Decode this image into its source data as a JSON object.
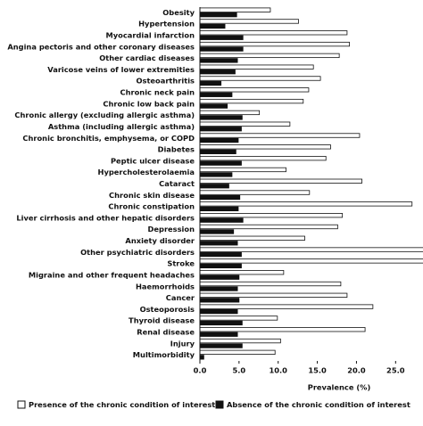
{
  "chart_data": {
    "type": "bar",
    "orientation": "horizontal",
    "categories": [
      "Obesity",
      "Hypertension",
      "Myocardial infarction",
      "Angina pectoris and other coronary diseases",
      "Other cardiac diseases",
      "Varicose veins of lower extremities",
      "Osteoarthritis",
      "Chronic neck pain",
      "Chronic low back pain",
      "Chronic allergy (excluding allergic asthma)",
      "Asthma (including allergic asthma)",
      "Chronic bronchitis, emphysema, or COPD",
      "Diabetes",
      "Peptic ulcer disease",
      "Hypercholesterolaemia",
      "Cataract",
      "Chronic skin disease",
      "Chronic constipation",
      "Liver cirrhosis and other hepatic disorders",
      "Depression",
      "Anxiety disorder",
      "Other psychiatric disorders",
      "Stroke",
      "Migraine and other frequent headaches",
      "Haemorrhoids",
      "Cancer",
      "Osteoporosis",
      "Thyroid disease",
      "Renal disease",
      "Injury",
      "Multimorbidity"
    ],
    "series": [
      {
        "name": "Presence of the chronic condition of interest",
        "color": "#ffffff",
        "values": [
          9.0,
          12.6,
          18.8,
          19.1,
          17.8,
          14.5,
          15.4,
          13.9,
          13.2,
          7.6,
          11.5,
          20.4,
          16.7,
          16.1,
          11.0,
          20.7,
          14.0,
          27.1,
          18.2,
          17.6,
          13.4,
          30,
          30,
          10.7,
          18.0,
          18.8,
          22.1,
          9.9,
          21.1,
          10.3,
          9.6
        ]
      },
      {
        "name": "Absence of the chronic condition of interest",
        "color": "#111111",
        "values": [
          4.7,
          3.2,
          5.5,
          5.5,
          4.8,
          4.5,
          2.7,
          4.1,
          3.5,
          5.4,
          5.3,
          4.9,
          4.6,
          5.3,
          4.1,
          3.7,
          5.1,
          4.9,
          5.5,
          4.3,
          4.8,
          5.3,
          5.3,
          5.0,
          4.8,
          5.0,
          4.8,
          5.4,
          4.8,
          5.4,
          0.5
        ]
      }
    ],
    "xlabel": "Prevalence (%)",
    "xlim": [
      0,
      28.5
    ],
    "xticks": [
      {
        "value": 0,
        "label": "0.0"
      },
      {
        "value": 5,
        "label": "5.0"
      },
      {
        "value": 10,
        "label": "10.0"
      },
      {
        "value": 15,
        "label": "15.0"
      },
      {
        "value": 20,
        "label": "20.0"
      },
      {
        "value": 25,
        "label": "25.0"
      }
    ],
    "legend": "bottom"
  }
}
